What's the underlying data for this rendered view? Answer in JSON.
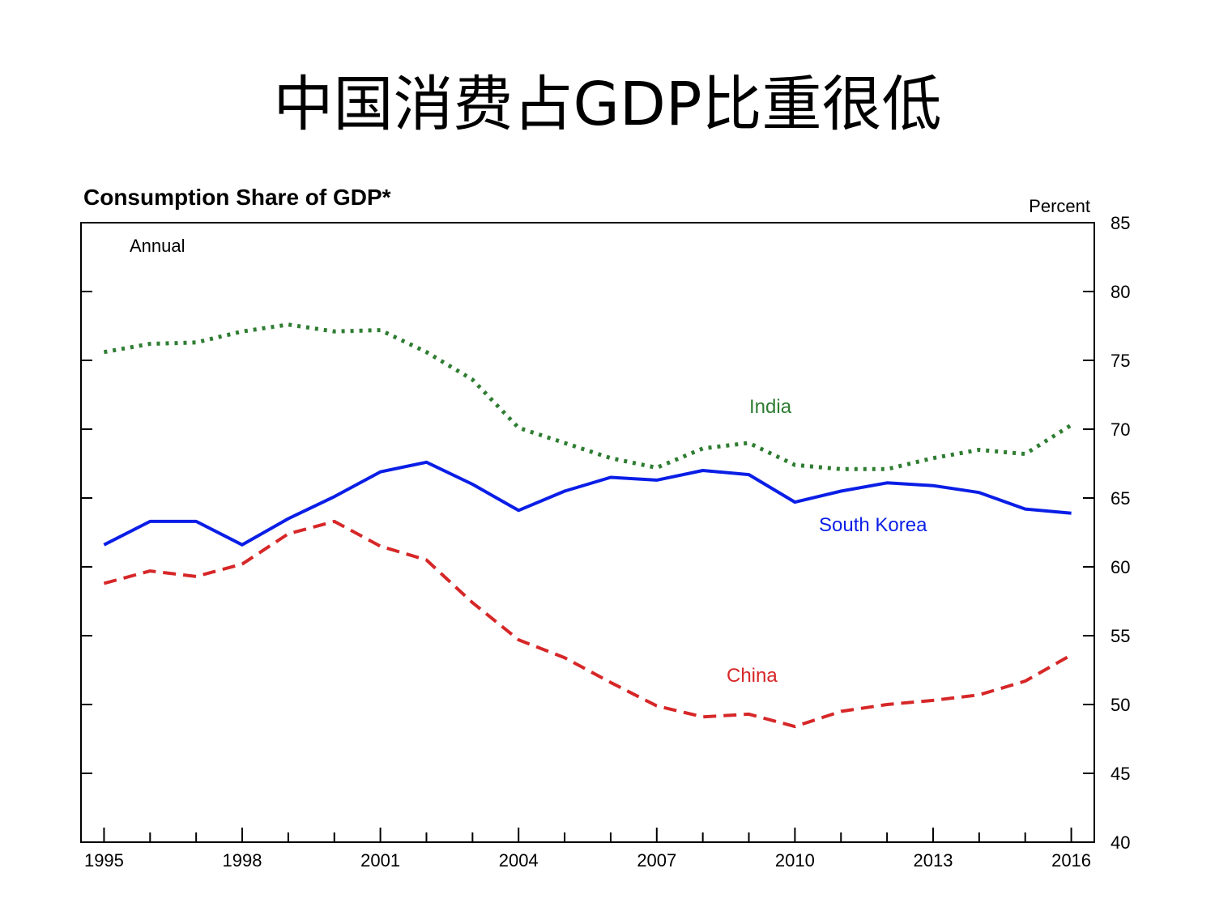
{
  "slide": {
    "title": "中国消费占GDP比重很低"
  },
  "chart_data": {
    "type": "line",
    "title": "Consumption Share of GDP*",
    "subtitle": "Annual",
    "ylabel": "Percent",
    "xlabel": "",
    "ylim": [
      40,
      85
    ],
    "xlim": [
      1994.5,
      2016.5
    ],
    "yticks": [
      40,
      45,
      50,
      55,
      60,
      65,
      70,
      75,
      80,
      85
    ],
    "xtick_labels": [
      "1995",
      "1998",
      "2001",
      "2004",
      "2007",
      "2010",
      "2013",
      "2016"
    ],
    "grid": false,
    "axis_position": "right",
    "x": [
      1995,
      1996,
      1997,
      1998,
      1999,
      2000,
      2001,
      2002,
      2003,
      2004,
      2005,
      2006,
      2007,
      2008,
      2009,
      2010,
      2011,
      2012,
      2013,
      2014,
      2015,
      2016
    ],
    "series": [
      {
        "name": "India",
        "color": "#2e7d32",
        "style": "dotted",
        "values": [
          75.6,
          76.2,
          76.3,
          77.1,
          77.6,
          77.1,
          77.2,
          75.6,
          73.6,
          70.1,
          69.0,
          67.9,
          67.2,
          68.6,
          69.0,
          67.4,
          67.1,
          67.1,
          67.9,
          68.5,
          68.2,
          70.3
        ]
      },
      {
        "name": "South Korea",
        "color": "#0a1ee6",
        "style": "solid",
        "values": [
          61.6,
          63.3,
          63.3,
          61.6,
          63.5,
          65.1,
          66.9,
          67.6,
          66.0,
          64.1,
          65.5,
          66.5,
          66.3,
          67.0,
          66.7,
          64.7,
          65.5,
          66.1,
          65.9,
          65.4,
          64.2,
          63.9
        ]
      },
      {
        "name": "China",
        "color": "#d62728",
        "style": "dashed",
        "values": [
          58.8,
          59.7,
          59.3,
          60.2,
          62.4,
          63.3,
          61.5,
          60.5,
          57.4,
          54.7,
          53.4,
          51.6,
          49.9,
          49.1,
          49.3,
          48.4,
          49.5,
          50.0,
          50.3,
          50.7,
          51.7,
          53.6
        ]
      }
    ]
  }
}
